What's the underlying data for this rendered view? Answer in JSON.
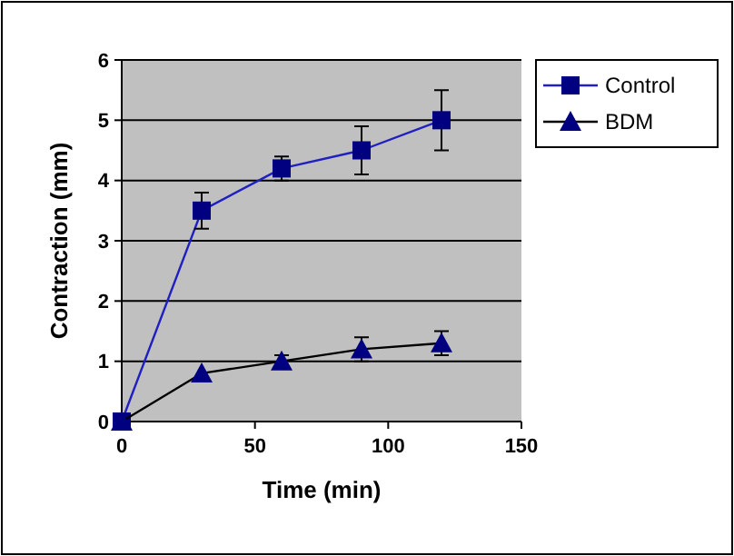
{
  "chart_data": {
    "type": "line",
    "xlabel": "Time (min)",
    "ylabel": "Contraction (mm)",
    "x": [
      0,
      30,
      60,
      90,
      120
    ],
    "xlim": [
      0,
      150
    ],
    "xticks": [
      0,
      50,
      100,
      150
    ],
    "ylim": [
      0,
      6
    ],
    "yticks": [
      0,
      1,
      2,
      3,
      4,
      5,
      6
    ],
    "grid": "y",
    "legend": "top right",
    "line_style": "solid",
    "series": [
      {
        "name": "Control",
        "color": "#000080",
        "marker": "square",
        "values": [
          0,
          3.5,
          4.2,
          4.5,
          5.0
        ],
        "errors": [
          null,
          0.3,
          0.2,
          0.4,
          0.5
        ]
      },
      {
        "name": "BDM",
        "color": "#000080",
        "marker": "triangle",
        "values": [
          0,
          0.8,
          1.0,
          1.2,
          1.3
        ],
        "errors": [
          null,
          null,
          0.1,
          0.2,
          0.2
        ]
      }
    ]
  }
}
